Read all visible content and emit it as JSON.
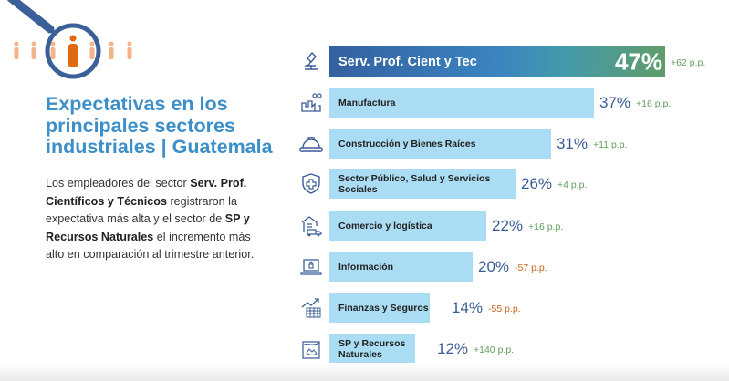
{
  "title": "Expectativas en los principales sectores industriales | Guatemala",
  "description": [
    {
      "text": "Los empleadores del sector ",
      "bold": false
    },
    {
      "text": "Serv. Prof. Científicos y Técnicos",
      "bold": true
    },
    {
      "text": " registraron la expectativa más alta y el sector de ",
      "bold": false
    },
    {
      "text": "SP y Recursos Naturales",
      "bold": true
    },
    {
      "text": " el incremento más alto en comparación al trimestre anterior.",
      "bold": false
    }
  ],
  "colors": {
    "title": "#3d8fc8",
    "bar": "#aadcf3",
    "top_bar_start": "#34609f",
    "top_bar_end": "#5f9c69",
    "percent": "#3a5c96",
    "delta_positive": "#5e9e5a",
    "delta_negative": "#c8661a",
    "magnifier": "#3a5f99",
    "person_highlight": "#e06a10",
    "person": "#f3b48a"
  },
  "chart_data": {
    "type": "bar",
    "orientation": "horizontal",
    "title": "Expectativas en los principales sectores industriales | Guatemala",
    "xlabel": "",
    "ylabel": "",
    "unit": "%",
    "xlim": [
      0,
      47
    ],
    "grid": false,
    "categories": [
      "Serv. Prof. Cient y Tec",
      "Manufactura",
      "Construcción y Bienes Raíces",
      "Sector Público, Salud y Servicios Sociales",
      "Comercio y logística",
      "Información",
      "Finanzas y Seguros",
      "SP y Recursos Naturales"
    ],
    "values": [
      47,
      37,
      31,
      26,
      22,
      20,
      14,
      12
    ],
    "value_labels": [
      "47%",
      "37%",
      "31%",
      "26%",
      "22%",
      "20%",
      "14%",
      "12%"
    ],
    "change_pp": [
      62,
      16,
      11,
      4,
      16,
      -57,
      -55,
      140
    ],
    "change_labels": [
      "+62 p.p.",
      "+16 p.p.",
      "+11 p.p.",
      "+4 p.p.",
      "+16 p.p.",
      "-57 p.p.",
      "-55 p.p.",
      "+140 p.p."
    ],
    "icons": [
      "microscope-icon",
      "factory-icon",
      "hard-hat-icon",
      "shield-health-icon",
      "warehouse-truck-icon",
      "laptop-lock-icon",
      "finance-chart-icon",
      "nature-landscape-icon"
    ]
  }
}
